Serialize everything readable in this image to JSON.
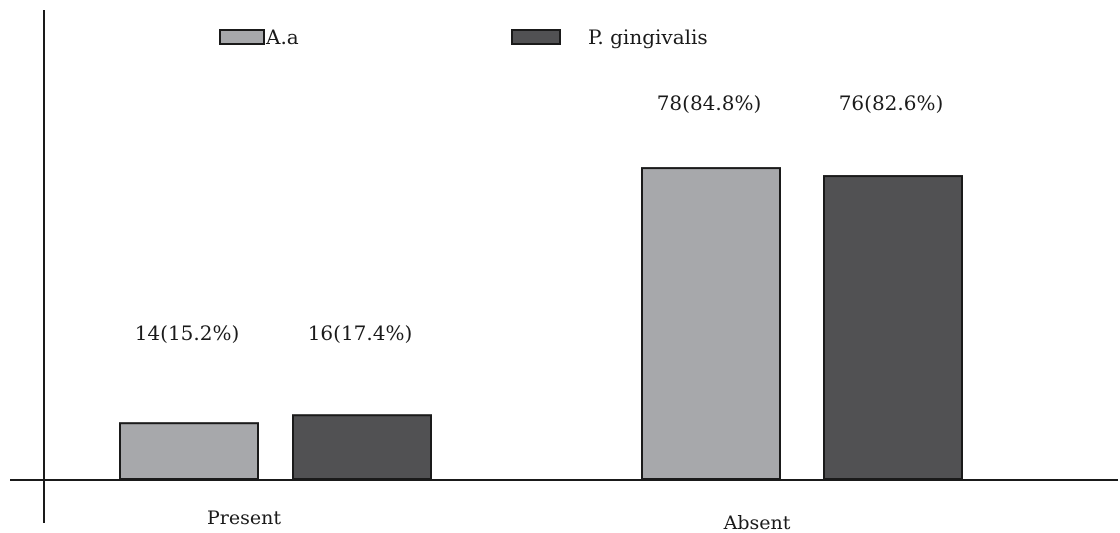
{
  "chart_data": {
    "type": "bar",
    "categories": [
      "Present",
      "Absent"
    ],
    "series": [
      {
        "name": "A.a",
        "values": [
          14,
          78
        ],
        "labels": [
          "14(15.2%)",
          "78(84.8%)"
        ],
        "color": "#a7a8ab"
      },
      {
        "name": "P. gingivalis",
        "values": [
          16,
          76
        ],
        "labels": [
          "16(17.4%)",
          "76(82.6%)"
        ],
        "color": "#515153"
      }
    ],
    "ylim": [
      0,
      84.8
    ],
    "grid": false,
    "legend_placement": "top"
  }
}
